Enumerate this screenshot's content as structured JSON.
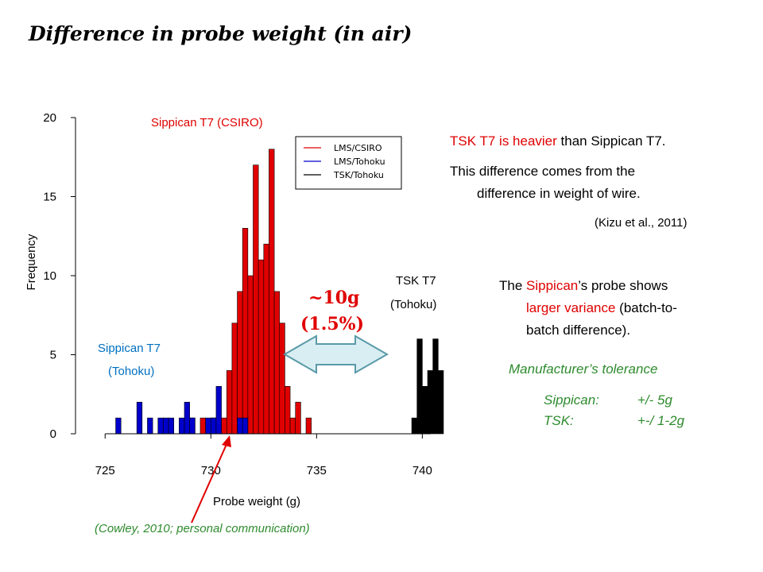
{
  "slide": {
    "title": "Difference in probe weight (in air)",
    "right_text": {
      "line1_a": "TSK T7 is heavier",
      "line1_b": " than Sippican T7.",
      "line2": "This difference comes from the",
      "line3": "difference in weight of wire.",
      "citation": "(Kizu et al., 2011)",
      "p2_a": "The ",
      "p2_b": "Sippican",
      "p2_c": "’s probe shows",
      "p2_line2_a": "larger variance",
      "p2_line2_b": " (batch-to-",
      "p2_line3": "batch difference).",
      "tolerance_title": "Manufacturer’s tolerance",
      "tol_sip_name": "Sippican:",
      "tol_sip_val": "+/- 5g",
      "tol_tsk_name": "TSK:",
      "tol_tsk_val": "+-/ 1-2g"
    },
    "annotations": {
      "sippican_csiro": "Sippican T7 (CSIRO)",
      "sippican_tohoku_1": "Sippican T7",
      "sippican_tohoku_2": "(Tohoku)",
      "tsk_1": "TSK T7",
      "tsk_2": "(Tohoku)",
      "diff_1": "~10g",
      "diff_2": "(1.5%)",
      "source": "(Cowley, 2010; personal communication)"
    },
    "colors": {
      "red": "#e00000",
      "blue": "#0000cc",
      "black": "#000000",
      "green": "#2e8b2e",
      "arrow_fill": "#d9eef2",
      "arrow_stroke": "#5a9aa8"
    }
  },
  "chart_data": {
    "type": "bar",
    "xlabel": "Probe weight (g)",
    "ylabel": "Frequency",
    "xlim": [
      723.6,
      740.4
    ],
    "ylim": [
      0,
      20
    ],
    "xticks": [
      725,
      730,
      735,
      740
    ],
    "yticks": [
      0,
      5,
      10,
      15,
      20
    ],
    "bin_width": 0.25,
    "legend": {
      "placement": "top-right",
      "entries": [
        "LMS/CSIRO",
        "LMS/Tohoku",
        "TSK/Tohoku"
      ]
    },
    "series": [
      {
        "name": "LMS/CSIRO",
        "color": "#e00000",
        "x": [
          729.0,
          729.5,
          730.0,
          730.25,
          730.5,
          730.75,
          731.0,
          731.25,
          731.5,
          731.75,
          732.0,
          732.25,
          732.5,
          732.75,
          733.0,
          733.25,
          733.5,
          733.75,
          734.0,
          734.5
        ],
        "values": [
          1,
          1,
          1,
          1,
          1,
          4,
          7,
          9,
          13,
          10,
          17,
          11,
          12,
          18,
          9,
          7,
          3,
          1,
          2,
          1
        ]
      },
      {
        "name": "LMS/Tohoku",
        "color": "#0000cc",
        "x": [
          725.5,
          726.5,
          727.0,
          727.5,
          727.75,
          728.0,
          728.5,
          728.75,
          729.0,
          729.75,
          730.0,
          730.25,
          731.25,
          731.5
        ],
        "values": [
          1,
          2,
          1,
          1,
          1,
          1,
          1,
          2,
          1,
          1,
          1,
          3,
          1,
          1
        ]
      },
      {
        "name": "TSK/Tohoku",
        "color": "#000000",
        "x": [
          739.5,
          739.75,
          740.0,
          740.25,
          740.5,
          740.75
        ],
        "values": [
          1,
          6,
          3,
          4,
          6,
          4
        ]
      }
    ]
  }
}
